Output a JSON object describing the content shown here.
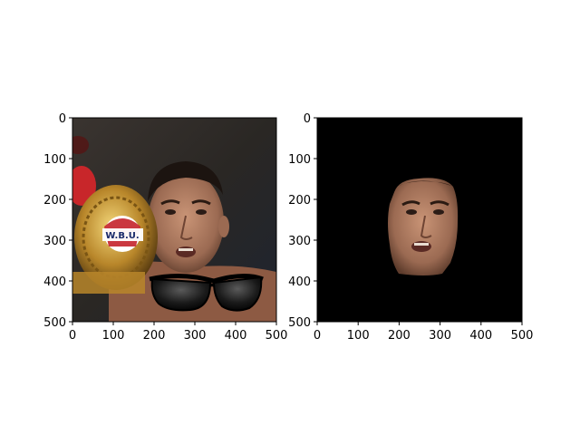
{
  "chart_data": [
    {
      "type": "image",
      "content": "photo of a boxer holding a W.B.U. championship belt with cartoon sunglasses overlaid",
      "belt_text": "W.B.U.",
      "xlim": [
        0,
        500
      ],
      "ylim": [
        500,
        0
      ],
      "xticks": [
        "0",
        "100",
        "200",
        "300",
        "400",
        "500"
      ],
      "yticks": [
        "0",
        "100",
        "200",
        "300",
        "400",
        "500"
      ]
    },
    {
      "type": "image",
      "content": "segmented face on black background",
      "xlim": [
        0,
        500
      ],
      "ylim": [
        500,
        0
      ],
      "xticks": [
        "0",
        "100",
        "200",
        "300",
        "400",
        "500"
      ],
      "yticks": [
        "0",
        "100",
        "200",
        "300",
        "400",
        "500"
      ]
    }
  ]
}
